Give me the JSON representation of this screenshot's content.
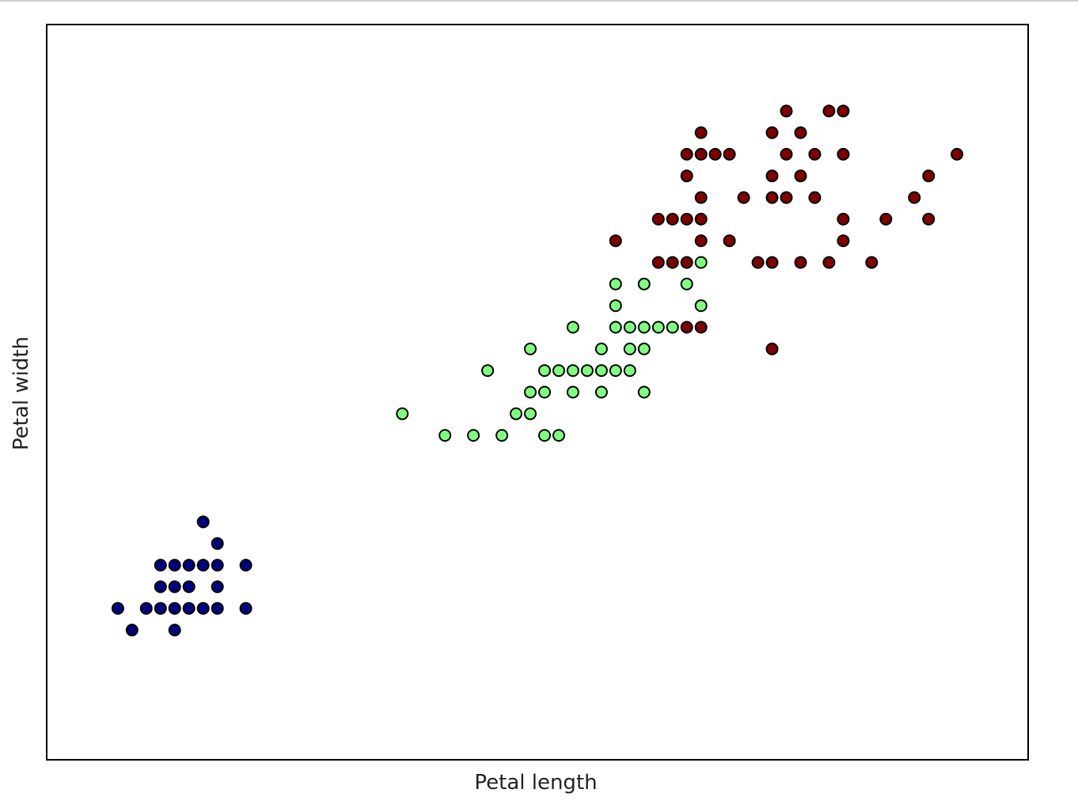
{
  "chart_data": {
    "type": "scatter",
    "title": "",
    "xlabel": "Petal length",
    "ylabel": "Petal width",
    "xlim": [
      0.5,
      7.4
    ],
    "ylim": [
      -0.5,
      2.9
    ],
    "ticks": "none",
    "grid": false,
    "legend": "none",
    "marker_edge_color": "#000000",
    "series": [
      {
        "color": "#00007f",
        "points": [
          [
            1.0,
            0.2
          ],
          [
            1.1,
            0.1
          ],
          [
            1.2,
            0.2
          ],
          [
            1.3,
            0.2
          ],
          [
            1.3,
            0.3
          ],
          [
            1.3,
            0.4
          ],
          [
            1.4,
            0.1
          ],
          [
            1.4,
            0.2
          ],
          [
            1.4,
            0.3
          ],
          [
            1.4,
            0.4
          ],
          [
            1.5,
            0.2
          ],
          [
            1.5,
            0.3
          ],
          [
            1.5,
            0.4
          ],
          [
            1.6,
            0.2
          ],
          [
            1.6,
            0.4
          ],
          [
            1.6,
            0.6
          ],
          [
            1.7,
            0.2
          ],
          [
            1.7,
            0.3
          ],
          [
            1.7,
            0.4
          ],
          [
            1.7,
            0.5
          ],
          [
            1.9,
            0.2
          ],
          [
            1.9,
            0.4
          ]
        ]
      },
      {
        "color": "#7fff7f",
        "points": [
          [
            3.0,
            1.1
          ],
          [
            3.3,
            1.0
          ],
          [
            3.5,
            1.0
          ],
          [
            3.7,
            1.0
          ],
          [
            3.6,
            1.3
          ],
          [
            3.8,
            1.1
          ],
          [
            3.9,
            1.1
          ],
          [
            3.9,
            1.2
          ],
          [
            3.9,
            1.4
          ],
          [
            4.0,
            1.0
          ],
          [
            4.0,
            1.2
          ],
          [
            4.0,
            1.3
          ],
          [
            4.1,
            1.0
          ],
          [
            4.1,
            1.3
          ],
          [
            4.2,
            1.3
          ],
          [
            4.2,
            1.2
          ],
          [
            4.2,
            1.5
          ],
          [
            4.3,
            1.3
          ],
          [
            4.4,
            1.3
          ],
          [
            4.4,
            1.2
          ],
          [
            4.4,
            1.4
          ],
          [
            4.5,
            1.3
          ],
          [
            4.5,
            1.5
          ],
          [
            4.5,
            1.6
          ],
          [
            4.5,
            1.7
          ],
          [
            4.6,
            1.3
          ],
          [
            4.6,
            1.4
          ],
          [
            4.6,
            1.5
          ],
          [
            4.7,
            1.4
          ],
          [
            4.7,
            1.5
          ],
          [
            4.7,
            1.2
          ],
          [
            4.7,
            1.7
          ],
          [
            4.8,
            1.5
          ],
          [
            4.9,
            1.5
          ],
          [
            5.0,
            1.7
          ],
          [
            5.1,
            1.6
          ],
          [
            5.1,
            1.8
          ]
        ]
      },
      {
        "color": "#7f0000",
        "points": [
          [
            4.5,
            1.9
          ],
          [
            4.8,
            1.8
          ],
          [
            4.8,
            2.0
          ],
          [
            4.9,
            1.8
          ],
          [
            4.9,
            2.0
          ],
          [
            5.0,
            1.5
          ],
          [
            5.0,
            1.8
          ],
          [
            5.0,
            2.0
          ],
          [
            5.0,
            2.2
          ],
          [
            5.0,
            2.3
          ],
          [
            5.1,
            2.1
          ],
          [
            5.1,
            2.3
          ],
          [
            5.1,
            1.9
          ],
          [
            5.1,
            2.0
          ],
          [
            5.1,
            2.4
          ],
          [
            5.1,
            1.5
          ],
          [
            5.2,
            2.3
          ],
          [
            5.3,
            1.9
          ],
          [
            5.3,
            2.3
          ],
          [
            5.4,
            2.1
          ],
          [
            5.5,
            1.8
          ],
          [
            5.6,
            2.1
          ],
          [
            5.6,
            2.4
          ],
          [
            5.6,
            2.2
          ],
          [
            5.6,
            1.8
          ],
          [
            5.6,
            1.4
          ],
          [
            5.7,
            2.1
          ],
          [
            5.7,
            2.5
          ],
          [
            5.7,
            2.3
          ],
          [
            5.8,
            1.8
          ],
          [
            5.8,
            2.2
          ],
          [
            5.8,
            2.4
          ],
          [
            5.9,
            2.1
          ],
          [
            5.9,
            2.3
          ],
          [
            6.0,
            1.8
          ],
          [
            6.0,
            2.5
          ],
          [
            6.1,
            1.9
          ],
          [
            6.1,
            2.3
          ],
          [
            6.1,
            2.5
          ],
          [
            6.1,
            2.0
          ],
          [
            6.3,
            1.8
          ],
          [
            6.4,
            2.0
          ],
          [
            6.6,
            2.1
          ],
          [
            6.7,
            2.2
          ],
          [
            6.7,
            2.0
          ],
          [
            6.9,
            2.3
          ]
        ]
      }
    ]
  }
}
